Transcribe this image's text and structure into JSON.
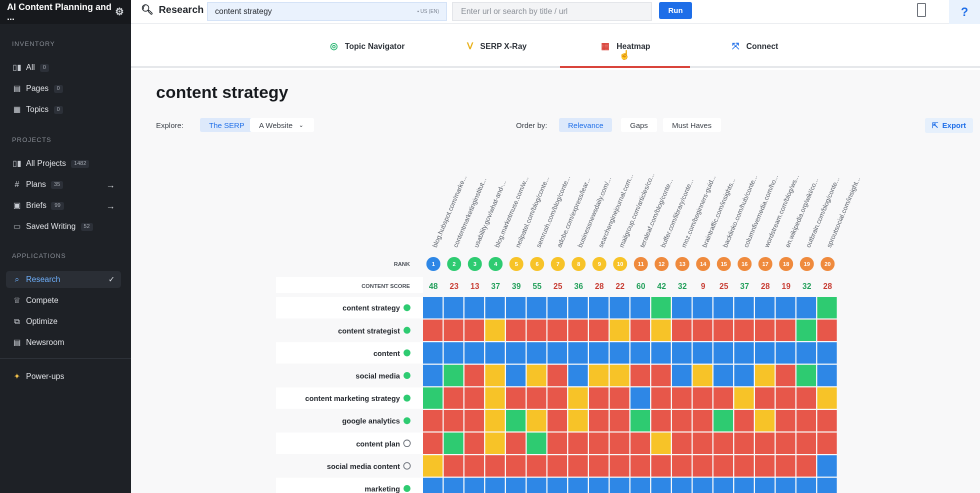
{
  "sidebar": {
    "title": "AI Content Planning and ...",
    "sections": {
      "inventory": "INVENTORY",
      "projects": "PROJECTS",
      "applications": "APPLICATIONS"
    },
    "inventory_items": [
      {
        "label": "All",
        "count": "0"
      },
      {
        "label": "Pages",
        "count": "0"
      },
      {
        "label": "Topics",
        "count": "0"
      }
    ],
    "project_items": [
      {
        "label": "All Projects",
        "count": "1482"
      },
      {
        "label": "Plans",
        "count": "35"
      },
      {
        "label": "Briefs",
        "count": "99"
      },
      {
        "label": "Saved Writing",
        "count": "52"
      }
    ],
    "application_items": [
      {
        "label": "Research"
      },
      {
        "label": "Compete"
      },
      {
        "label": "Optimize"
      },
      {
        "label": "Newsroom"
      }
    ],
    "powerups": "Power-ups"
  },
  "topbar": {
    "title": "Research",
    "keyword": "content strategy",
    "locale": "US (EN)",
    "url_placeholder": "Enter url or search by title / url",
    "run_label": "Run",
    "help": "?"
  },
  "tabs": [
    {
      "label": "Topic Navigator",
      "icon": "topic-navigator-icon",
      "color": "#2bb673"
    },
    {
      "label": "SERP X-Ray",
      "icon": "xray-icon",
      "color": "#e8b019"
    },
    {
      "label": "Heatmap",
      "icon": "heatmap-icon",
      "color": "#d9443b"
    },
    {
      "label": "Connect",
      "icon": "connect-icon",
      "color": "#1e6ee8"
    }
  ],
  "main": {
    "title": "content strategy",
    "explore_label": "Explore:",
    "explore_options": [
      "The SERP",
      "A Website"
    ],
    "order_label": "Order by:",
    "order_options": [
      "Relevance",
      "Gaps",
      "Must Haves"
    ],
    "export_label": "Export"
  },
  "colors": {
    "blue": "#2e87e6",
    "green": "#2ecb71",
    "yellow": "#f7c328",
    "red": "#e7574a",
    "orange": "#ef8a3d"
  },
  "heatmap": {
    "rank_label": "RANK",
    "score_label": "CONTENT SCORE",
    "urls": [
      "blog.hubspot.com/marke...",
      "contentmarketinginstitut...",
      "usability.gov/what-and-...",
      "blog.marketmuse.com/w...",
      "neilpatel.com/blog/conte...",
      "semrush.com/blog/conte...",
      "adobe.com/express/lear...",
      "businessnewsdaily.com/...",
      "searchenginejournal.com...",
      "mailgroup.com/articles/co...",
      "teraleaf.com/blog/conte...",
      "buffer.com/library/conte...",
      "moz.com/beginners-guid...",
      "braintraffic.com/insights...",
      "backlinko.com/hub/conte...",
      "columnfivemedia.com/ho...",
      "wordstream.com/blog/ws...",
      "en.wikipedia.org/wiki/co...",
      "outbrain.com/blog/conte...",
      "sproutsocial.com/insight..."
    ],
    "ranks": [
      "1",
      "2",
      "3",
      "4",
      "5",
      "6",
      "7",
      "8",
      "9",
      "10",
      "11",
      "12",
      "13",
      "14",
      "15",
      "16",
      "17",
      "18",
      "19",
      "20"
    ],
    "rank_colors": [
      "blue",
      "green",
      "green",
      "green",
      "yellow",
      "yellow",
      "yellow",
      "yellow",
      "yellow",
      "yellow",
      "orange",
      "orange",
      "orange",
      "orange",
      "orange",
      "orange",
      "orange",
      "orange",
      "orange",
      "orange"
    ],
    "scores": [
      "48",
      "23",
      "13",
      "37",
      "39",
      "55",
      "25",
      "36",
      "28",
      "22",
      "60",
      "42",
      "32",
      "9",
      "25",
      "37",
      "28",
      "19",
      "32",
      "28"
    ],
    "score_colors": [
      "green",
      "red",
      "red",
      "green",
      "green",
      "green",
      "red",
      "green",
      "red",
      "red",
      "green",
      "green",
      "green",
      "red",
      "red",
      "green",
      "red",
      "red",
      "green",
      "red"
    ],
    "rows": [
      {
        "term": "content strategy",
        "icon": "plus",
        "cells": [
          "blue",
          "blue",
          "blue",
          "blue",
          "blue",
          "blue",
          "blue",
          "blue",
          "blue",
          "blue",
          "blue",
          "green",
          "blue",
          "blue",
          "blue",
          "blue",
          "blue",
          "blue",
          "blue",
          "green"
        ]
      },
      {
        "term": "content strategist",
        "icon": "plus",
        "cells": [
          "red",
          "red",
          "red",
          "yellow",
          "red",
          "red",
          "red",
          "red",
          "red",
          "yellow",
          "red",
          "yellow",
          "red",
          "red",
          "red",
          "red",
          "red",
          "red",
          "green",
          "red"
        ]
      },
      {
        "term": "content",
        "icon": "plus",
        "cells": [
          "blue",
          "blue",
          "blue",
          "blue",
          "blue",
          "blue",
          "blue",
          "blue",
          "blue",
          "blue",
          "blue",
          "blue",
          "blue",
          "blue",
          "blue",
          "blue",
          "blue",
          "blue",
          "blue",
          "blue"
        ]
      },
      {
        "term": "social media",
        "icon": "plus",
        "cells": [
          "blue",
          "green",
          "red",
          "yellow",
          "blue",
          "yellow",
          "red",
          "blue",
          "yellow",
          "yellow",
          "red",
          "red",
          "blue",
          "yellow",
          "blue",
          "blue",
          "yellow",
          "red",
          "green",
          "blue"
        ]
      },
      {
        "term": "content marketing strategy",
        "icon": "plus",
        "cells": [
          "green",
          "red",
          "red",
          "yellow",
          "red",
          "red",
          "red",
          "yellow",
          "red",
          "red",
          "blue",
          "red",
          "red",
          "red",
          "red",
          "yellow",
          "red",
          "red",
          "red",
          "yellow"
        ]
      },
      {
        "term": "google analytics",
        "icon": "plus",
        "cells": [
          "red",
          "red",
          "red",
          "yellow",
          "green",
          "yellow",
          "red",
          "yellow",
          "red",
          "red",
          "green",
          "red",
          "red",
          "red",
          "green",
          "red",
          "yellow",
          "red",
          "red",
          "red"
        ]
      },
      {
        "term": "content plan",
        "icon": "arrow",
        "cells": [
          "red",
          "green",
          "red",
          "yellow",
          "red",
          "green",
          "red",
          "red",
          "red",
          "red",
          "red",
          "yellow",
          "red",
          "red",
          "red",
          "red",
          "red",
          "red",
          "red",
          "red"
        ]
      },
      {
        "term": "social media content",
        "icon": "arrow",
        "cells": [
          "yellow",
          "red",
          "red",
          "red",
          "red",
          "red",
          "red",
          "red",
          "red",
          "red",
          "red",
          "red",
          "red",
          "red",
          "red",
          "red",
          "red",
          "red",
          "red",
          "blue"
        ]
      },
      {
        "term": "marketing",
        "icon": "plus",
        "cells": [
          "blue",
          "blue",
          "blue",
          "blue",
          "blue",
          "blue",
          "blue",
          "blue",
          "blue",
          "blue",
          "blue",
          "blue",
          "blue",
          "blue",
          "blue",
          "blue",
          "blue",
          "blue",
          "blue",
          "blue"
        ]
      }
    ]
  }
}
